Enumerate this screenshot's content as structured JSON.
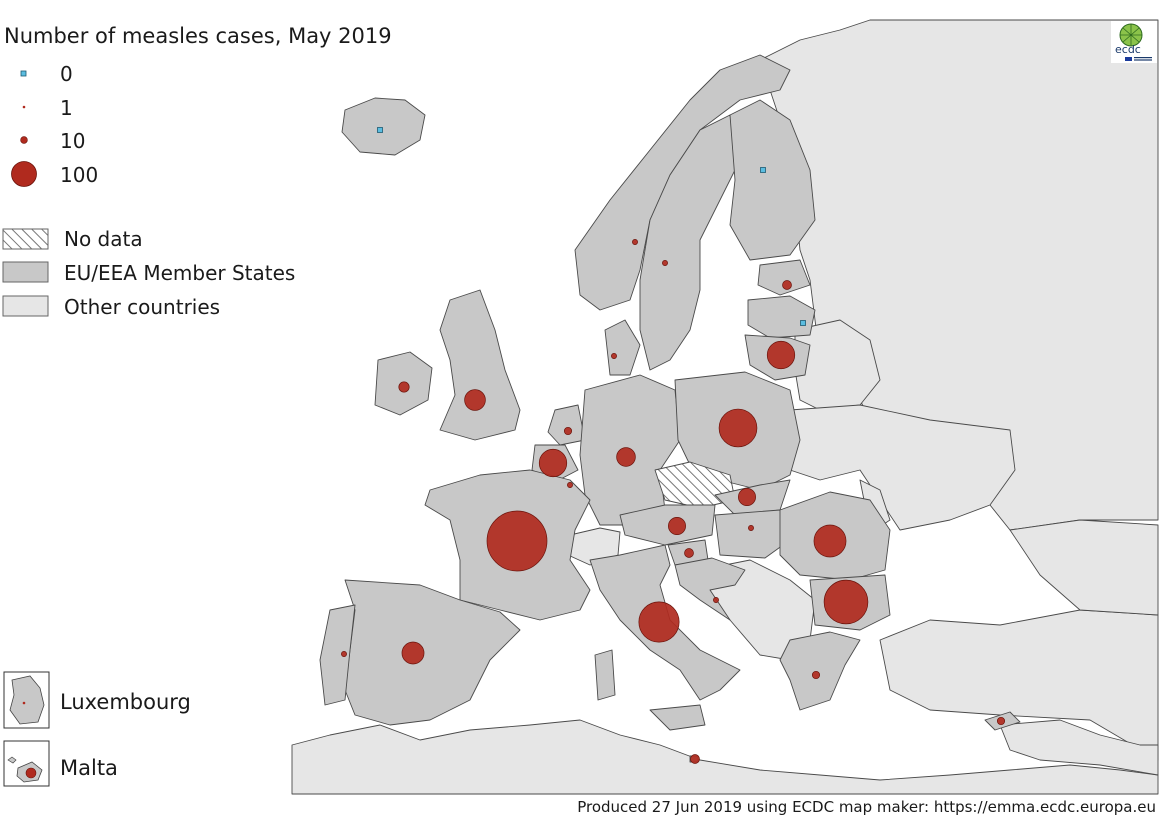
{
  "title": "Number of measles cases, May 2019",
  "legend": {
    "sizes": [
      {
        "label": "0",
        "cases": 0
      },
      {
        "label": "1",
        "cases": 1
      },
      {
        "label": "10",
        "cases": 10
      },
      {
        "label": "100",
        "cases": 100
      }
    ],
    "categories": [
      {
        "label": "No data",
        "style": "hatched"
      },
      {
        "label": "EU/EEA Member States",
        "color": "#c8c8c8"
      },
      {
        "label": "Other countries",
        "color": "#e6e6e6"
      }
    ]
  },
  "insets": [
    {
      "label": "Luxembourg"
    },
    {
      "label": "Malta"
    }
  ],
  "footer": "Produced 27 Jun 2019 using ECDC map maker: https://emma.ecdc.europa.eu",
  "logo": {
    "text": "ecdc"
  },
  "colors": {
    "eu": "#c8c8c8",
    "other": "#e6e6e6",
    "sea": "#ffffff",
    "border": "#4a4a4a",
    "bubble": "#b02a1e",
    "zero_marker": "#5bbde0"
  },
  "map_data": [
    {
      "country": "Iceland",
      "cases": 0
    },
    {
      "country": "Finland",
      "cases": 0
    },
    {
      "country": "Latvia",
      "cases": 0
    },
    {
      "country": "Norway",
      "cases": 1
    },
    {
      "country": "Sweden",
      "cases": 1
    },
    {
      "country": "Estonia",
      "cases": 3
    },
    {
      "country": "Lithuania",
      "cases": 28
    },
    {
      "country": "Ireland",
      "cases": 4
    },
    {
      "country": "United Kingdom",
      "cases": 16
    },
    {
      "country": "Denmark",
      "cases": 1
    },
    {
      "country": "Netherlands",
      "cases": 2
    },
    {
      "country": "Belgium",
      "cases": 28
    },
    {
      "country": "Luxembourg",
      "cases": 1
    },
    {
      "country": "Germany",
      "cases": 13
    },
    {
      "country": "Poland",
      "cases": 53
    },
    {
      "country": "France",
      "cases": 133
    },
    {
      "country": "Slovakia",
      "cases": 11
    },
    {
      "country": "Austria",
      "cases": 11
    },
    {
      "country": "Hungary",
      "cases": 1
    },
    {
      "country": "Slovenia",
      "cases": 3
    },
    {
      "country": "Croatia",
      "cases": 1
    },
    {
      "country": "Romania",
      "cases": 38
    },
    {
      "country": "Bulgaria",
      "cases": 71
    },
    {
      "country": "Italy",
      "cases": 60
    },
    {
      "country": "Spain",
      "cases": 18
    },
    {
      "country": "Portugal",
      "cases": 1
    },
    {
      "country": "Greece",
      "cases": 2
    },
    {
      "country": "Cyprus",
      "cases": 2
    },
    {
      "country": "Malta",
      "cases": 3
    }
  ]
}
